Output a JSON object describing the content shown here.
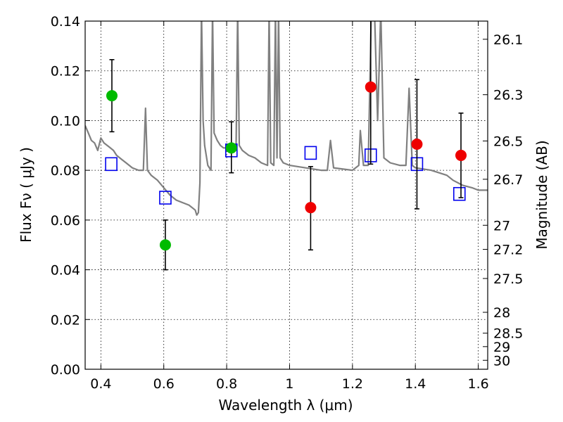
{
  "chart_data": {
    "type": "scatter",
    "title": "",
    "xlabel": "Wavelength  λ (μm)",
    "ylabel": "Flux  Fν  ( μJy )",
    "y2label": "Magnitude (AB)",
    "xlim": [
      0.35,
      1.63
    ],
    "ylim": [
      0.0,
      0.14
    ],
    "grid": true,
    "x_ticks": [
      0.4,
      0.6,
      0.8,
      1.0,
      1.2,
      1.4,
      1.6
    ],
    "x_tick_labels": [
      "0.4",
      "0.6",
      "0.8",
      "1",
      "1.2",
      "1.4",
      "1.6"
    ],
    "y_ticks": [
      0.0,
      0.02,
      0.04,
      0.06,
      0.08,
      0.1,
      0.12,
      0.14
    ],
    "y_tick_labels": [
      "0.00",
      "0.02",
      "0.04",
      "0.06",
      "0.08",
      "0.10",
      "0.12",
      "0.14"
    ],
    "y2_ticks": [
      {
        "label": "26.1",
        "flux": 0.1327
      },
      {
        "label": "26.3",
        "flux": 0.1104
      },
      {
        "label": "26.5",
        "flux": 0.0918
      },
      {
        "label": "26.7",
        "flux": 0.0764
      },
      {
        "label": "27",
        "flux": 0.0579
      },
      {
        "label": "27.2",
        "flux": 0.0482
      },
      {
        "label": "27.5",
        "flux": 0.0365
      },
      {
        "label": "28",
        "flux": 0.0229
      },
      {
        "label": "28.5",
        "flux": 0.0145
      },
      {
        "label": "29",
        "flux": 0.0091
      },
      {
        "label": "30",
        "flux": 0.0036
      }
    ],
    "series": [
      {
        "name": "model spectrum",
        "kind": "line",
        "color": "#808080",
        "points": [
          [
            0.35,
            0.098
          ],
          [
            0.36,
            0.095
          ],
          [
            0.37,
            0.092
          ],
          [
            0.38,
            0.091
          ],
          [
            0.39,
            0.088
          ],
          [
            0.4,
            0.093
          ],
          [
            0.41,
            0.091
          ],
          [
            0.42,
            0.09
          ],
          [
            0.43,
            0.089
          ],
          [
            0.44,
            0.088
          ],
          [
            0.45,
            0.086
          ],
          [
            0.46,
            0.085
          ],
          [
            0.47,
            0.084
          ],
          [
            0.48,
            0.083
          ],
          [
            0.5,
            0.081
          ],
          [
            0.52,
            0.08
          ],
          [
            0.535,
            0.08
          ],
          [
            0.542,
            0.105
          ],
          [
            0.548,
            0.08
          ],
          [
            0.56,
            0.078
          ],
          [
            0.58,
            0.076
          ],
          [
            0.6,
            0.073
          ],
          [
            0.62,
            0.07
          ],
          [
            0.64,
            0.068
          ],
          [
            0.66,
            0.067
          ],
          [
            0.68,
            0.066
          ],
          [
            0.7,
            0.064
          ],
          [
            0.705,
            0.062
          ],
          [
            0.71,
            0.063
          ],
          [
            0.715,
            0.075
          ],
          [
            0.72,
            0.1445
          ],
          [
            0.725,
            0.1
          ],
          [
            0.73,
            0.09
          ],
          [
            0.74,
            0.082
          ],
          [
            0.75,
            0.08
          ],
          [
            0.755,
            0.1445
          ],
          [
            0.76,
            0.095
          ],
          [
            0.77,
            0.092
          ],
          [
            0.78,
            0.09
          ],
          [
            0.79,
            0.089
          ],
          [
            0.8,
            0.089
          ],
          [
            0.82,
            0.089
          ],
          [
            0.83,
            0.09
          ],
          [
            0.835,
            0.1445
          ],
          [
            0.84,
            0.09
          ],
          [
            0.85,
            0.088
          ],
          [
            0.87,
            0.086
          ],
          [
            0.89,
            0.085
          ],
          [
            0.91,
            0.083
          ],
          [
            0.93,
            0.082
          ],
          [
            0.935,
            0.1445
          ],
          [
            0.94,
            0.083
          ],
          [
            0.95,
            0.082
          ],
          [
            0.955,
            0.1445
          ],
          [
            0.96,
            0.085
          ],
          [
            0.965,
            0.1445
          ],
          [
            0.97,
            0.085
          ],
          [
            0.98,
            0.083
          ],
          [
            1.0,
            0.082
          ],
          [
            1.05,
            0.081
          ],
          [
            1.1,
            0.08
          ],
          [
            1.12,
            0.08
          ],
          [
            1.13,
            0.092
          ],
          [
            1.14,
            0.081
          ],
          [
            1.2,
            0.08
          ],
          [
            1.22,
            0.082
          ],
          [
            1.225,
            0.096
          ],
          [
            1.235,
            0.082
          ],
          [
            1.25,
            0.082
          ],
          [
            1.26,
            0.1445
          ],
          [
            1.27,
            0.1445
          ],
          [
            1.28,
            0.1
          ],
          [
            1.29,
            0.1445
          ],
          [
            1.3,
            0.085
          ],
          [
            1.32,
            0.083
          ],
          [
            1.35,
            0.082
          ],
          [
            1.37,
            0.082
          ],
          [
            1.38,
            0.113
          ],
          [
            1.39,
            0.082
          ],
          [
            1.4,
            0.081
          ],
          [
            1.45,
            0.08
          ],
          [
            1.5,
            0.078
          ],
          [
            1.52,
            0.076
          ],
          [
            1.55,
            0.074
          ],
          [
            1.58,
            0.073
          ],
          [
            1.6,
            0.072
          ],
          [
            1.63,
            0.072
          ]
        ]
      },
      {
        "name": "model photometry",
        "kind": "open-square",
        "color": "#0000ee",
        "points": [
          [
            0.433,
            0.0825
          ],
          [
            0.605,
            0.069
          ],
          [
            0.815,
            0.088
          ],
          [
            1.067,
            0.087
          ],
          [
            1.258,
            0.086
          ],
          [
            1.405,
            0.0825
          ],
          [
            1.54,
            0.0705
          ]
        ]
      },
      {
        "name": "green photometry",
        "kind": "marker",
        "color": "#00bb00",
        "points": [
          {
            "x": 0.435,
            "y": 0.11,
            "err_low": 0.0955,
            "err_high": 0.1245
          },
          {
            "x": 0.605,
            "y": 0.05,
            "err_low": 0.04,
            "err_high": 0.06
          },
          {
            "x": 0.815,
            "y": 0.089,
            "err_low": 0.079,
            "err_high": 0.0995
          }
        ]
      },
      {
        "name": "red photometry",
        "kind": "marker",
        "color": "#ee0000",
        "points": [
          {
            "x": 1.067,
            "y": 0.065,
            "err_low": 0.048,
            "err_high": 0.0815
          },
          {
            "x": 1.258,
            "y": 0.1135,
            "err_low": 0.0825,
            "err_high": 0.145
          },
          {
            "x": 1.405,
            "y": 0.0905,
            "err_low": 0.0645,
            "err_high": 0.1165
          },
          {
            "x": 1.545,
            "y": 0.086,
            "err_low": 0.069,
            "err_high": 0.103
          }
        ]
      }
    ]
  }
}
